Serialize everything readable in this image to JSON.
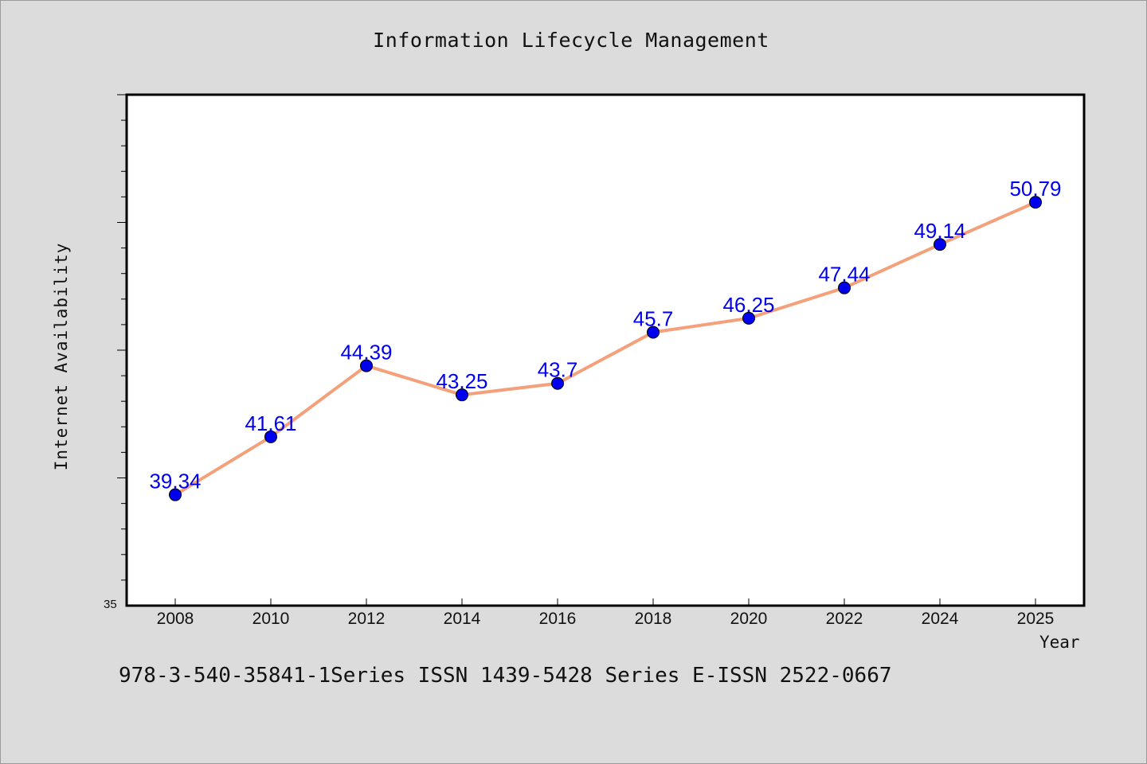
{
  "chart_data": {
    "type": "line",
    "title": "Information Lifecycle Management",
    "xlabel": "Year",
    "ylabel": "Internet Availability",
    "categories": [
      "2008",
      "2010",
      "2012",
      "2014",
      "2016",
      "2018",
      "2020",
      "2022",
      "2024",
      "2025"
    ],
    "series": [
      {
        "values": [
          39.34,
          41.61,
          44.39,
          43.25,
          43.7,
          45.7,
          46.25,
          47.44,
          49.14,
          50.79
        ],
        "labels": [
          "39.34",
          "41.61",
          "44.39",
          "43.25",
          "43.7",
          "45.7",
          "46.25",
          "47.44",
          "49.14",
          "50.79"
        ],
        "color": "#f4a07a",
        "marker_color": "#0000ee",
        "label_color": "#0000ee"
      }
    ],
    "ylim": [
      35,
      55
    ],
    "y_tick_labels": [
      "35"
    ],
    "y_minor_step": 1,
    "y_major_step": 5,
    "grid": false,
    "legend": "none"
  },
  "caption": "978-3-540-35841-1Series ISSN 1439-5428 Series E-ISSN 2522-0667",
  "colors": {
    "background": "#dcdcdc",
    "plot_background": "#ffffff",
    "axis": "#000000"
  }
}
